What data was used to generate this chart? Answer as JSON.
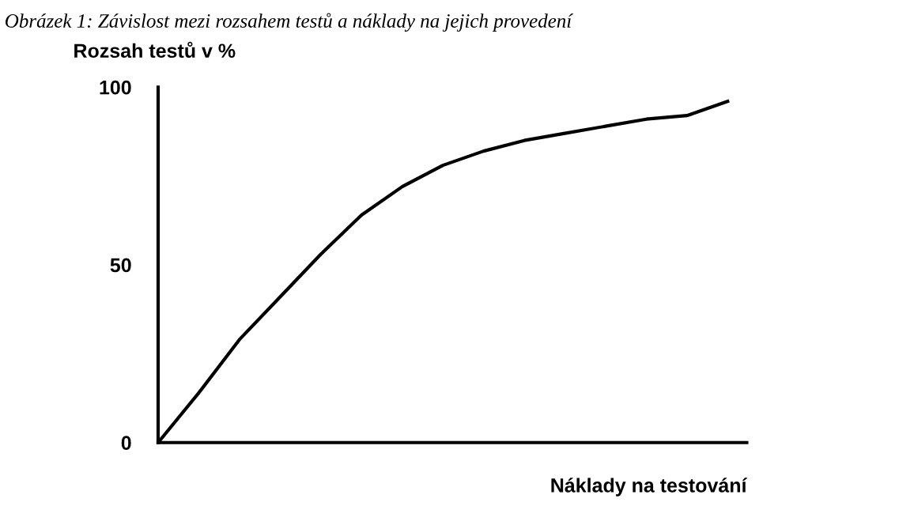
{
  "chart_data": {
    "type": "line",
    "title": "Obrázek 1: Závislost mezi rozsahem testů a náklady na jejich provedení",
    "xlabel": "Náklady na testování",
    "ylabel": "Rozsah testů v %",
    "categories": [
      null,
      null,
      null,
      null,
      null,
      null,
      null,
      null,
      null,
      null,
      null,
      null,
      null,
      null,
      null
    ],
    "series": [
      {
        "color": "#000000",
        "values": [
          0,
          14,
          29,
          41,
          53,
          64,
          72,
          78,
          82,
          85,
          87,
          89,
          91,
          92,
          96
        ]
      }
    ],
    "ylim": [
      0,
      100
    ],
    "yticks": [
      0,
      50,
      100
    ],
    "grid": false,
    "legend": false,
    "marker": "none",
    "line_style": "solid"
  }
}
